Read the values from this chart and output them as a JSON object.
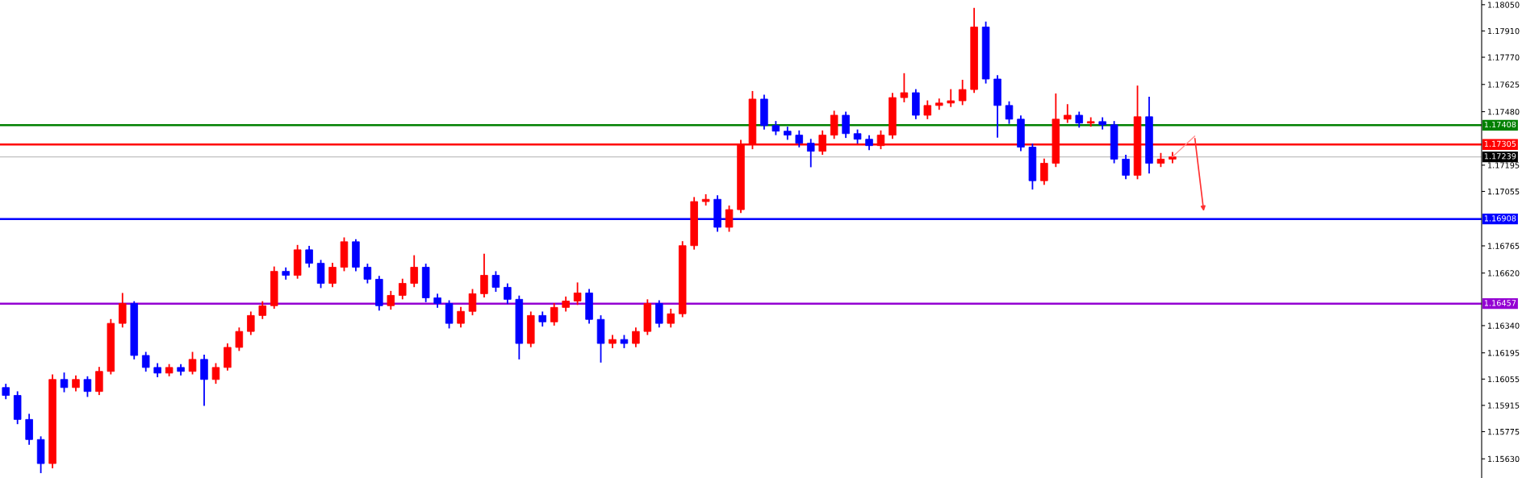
{
  "chart_data": {
    "type": "candlestick",
    "categories": [
      null,
      null,
      null,
      null,
      null,
      null,
      null,
      null,
      null,
      null,
      null,
      null,
      null,
      null,
      null,
      null,
      null,
      null,
      null,
      null,
      null,
      null,
      null,
      null,
      null,
      null,
      null,
      null,
      null,
      null,
      null,
      null,
      null,
      null,
      null,
      null,
      null,
      null,
      null,
      null,
      null,
      null,
      null,
      null,
      null,
      null,
      null,
      null,
      null,
      null,
      null,
      null,
      null,
      null,
      null,
      null,
      null,
      null,
      null,
      null,
      null,
      null,
      null,
      null,
      null,
      null,
      null,
      null,
      null,
      null,
      null,
      null,
      null,
      null,
      null,
      null,
      null,
      null,
      null,
      null,
      null,
      null,
      null,
      null,
      null,
      null,
      null,
      null,
      null,
      null,
      null,
      null,
      null,
      null,
      null,
      null,
      null,
      null,
      null,
      null,
      null,
      null,
      null,
      null,
      null,
      null,
      null,
      null,
      null,
      null,
      null,
      null,
      null,
      null,
      null,
      null,
      null,
      null,
      null,
      null,
      null,
      null,
      null,
      null,
      null,
      null,
      null
    ],
    "ohlc": [
      [
        1.1601,
        1.1603,
        1.15948,
        1.15968
      ],
      [
        1.15968,
        1.1599,
        1.15815,
        1.1584
      ],
      [
        1.1584,
        1.1587,
        1.15705,
        1.15733
      ],
      [
        1.15733,
        1.1575,
        1.15554,
        1.15605
      ],
      [
        1.15605,
        1.1608,
        1.1558,
        1.16053
      ],
      [
        1.16053,
        1.1609,
        1.15985,
        1.1601
      ],
      [
        1.1601,
        1.16075,
        1.1599,
        1.16053
      ],
      [
        1.16053,
        1.1607,
        1.1596,
        1.15989
      ],
      [
        1.15989,
        1.1612,
        1.1597,
        1.16096
      ],
      [
        1.16096,
        1.16375,
        1.1608,
        1.16352
      ],
      [
        1.16352,
        1.16514,
        1.1633,
        1.16458
      ],
      [
        1.16458,
        1.1647,
        1.1616,
        1.16181
      ],
      [
        1.16181,
        1.162,
        1.16095,
        1.16117
      ],
      [
        1.16117,
        1.1614,
        1.16065,
        1.16087
      ],
      [
        1.16087,
        1.16135,
        1.1607,
        1.16117
      ],
      [
        1.16117,
        1.16135,
        1.16075,
        1.16096
      ],
      [
        1.16096,
        1.162,
        1.1608,
        1.1616
      ],
      [
        1.1616,
        1.16185,
        1.15912,
        1.16053
      ],
      [
        1.16053,
        1.1614,
        1.1603,
        1.16117
      ],
      [
        1.16117,
        1.16245,
        1.161,
        1.16224
      ],
      [
        1.16224,
        1.1633,
        1.16205,
        1.16309
      ],
      [
        1.16309,
        1.16415,
        1.1629,
        1.16394
      ],
      [
        1.16394,
        1.1647,
        1.16375,
        1.16446
      ],
      [
        1.16446,
        1.16655,
        1.1643,
        1.16629
      ],
      [
        1.16629,
        1.1665,
        1.16585,
        1.16608
      ],
      [
        1.16608,
        1.1677,
        1.1659,
        1.16744
      ],
      [
        1.16744,
        1.16765,
        1.1665,
        1.16672
      ],
      [
        1.16672,
        1.1669,
        1.1654,
        1.16565
      ],
      [
        1.16565,
        1.16675,
        1.16545,
        1.16651
      ],
      [
        1.16651,
        1.1681,
        1.1663,
        1.16787
      ],
      [
        1.16787,
        1.168,
        1.1663,
        1.16651
      ],
      [
        1.16651,
        1.1667,
        1.16565,
        1.16587
      ],
      [
        1.16587,
        1.16605,
        1.1642,
        1.16446
      ],
      [
        1.16446,
        1.16525,
        1.16425,
        1.16501
      ],
      [
        1.16501,
        1.1659,
        1.1648,
        1.16565
      ],
      [
        1.16565,
        1.16715,
        1.16545,
        1.16651
      ],
      [
        1.16651,
        1.1667,
        1.16465,
        1.16488
      ],
      [
        1.16488,
        1.1651,
        1.16435,
        1.16458
      ],
      [
        1.16458,
        1.16475,
        1.16325,
        1.16352
      ],
      [
        1.16352,
        1.1644,
        1.1633,
        1.16416
      ],
      [
        1.16416,
        1.16535,
        1.16395,
        1.1651
      ],
      [
        1.1651,
        1.16723,
        1.1649,
        1.16608
      ],
      [
        1.16608,
        1.1663,
        1.1652,
        1.16544
      ],
      [
        1.16544,
        1.16565,
        1.16455,
        1.1648
      ],
      [
        1.1648,
        1.165,
        1.1616,
        1.16245
      ],
      [
        1.16245,
        1.16415,
        1.16225,
        1.16394
      ],
      [
        1.16394,
        1.16415,
        1.16335,
        1.1636
      ],
      [
        1.1636,
        1.1646,
        1.1634,
        1.16437
      ],
      [
        1.16437,
        1.16495,
        1.16415,
        1.16471
      ],
      [
        1.16471,
        1.1657,
        1.1645,
        1.16514
      ],
      [
        1.16514,
        1.16535,
        1.1635,
        1.16373
      ],
      [
        1.16373,
        1.16395,
        1.16143,
        1.16245
      ],
      [
        1.16245,
        1.1629,
        1.1622,
        1.16266
      ],
      [
        1.16266,
        1.1629,
        1.1622,
        1.16245
      ],
      [
        1.16245,
        1.1633,
        1.16225,
        1.16309
      ],
      [
        1.16309,
        1.1648,
        1.1629,
        1.16458
      ],
      [
        1.16458,
        1.16475,
        1.1633,
        1.16352
      ],
      [
        1.16352,
        1.1643,
        1.1633,
        1.16403
      ],
      [
        1.16403,
        1.1679,
        1.16385,
        1.16766
      ],
      [
        1.16766,
        1.17025,
        1.16745,
        1.17001
      ],
      [
        1.17001,
        1.1704,
        1.1698,
        1.17013
      ],
      [
        1.17013,
        1.17035,
        1.1684,
        1.16864
      ],
      [
        1.16864,
        1.1698,
        1.1684,
        1.16958
      ],
      [
        1.16958,
        1.1733,
        1.1694,
        1.17304
      ],
      [
        1.17304,
        1.1759,
        1.1728,
        1.17547
      ],
      [
        1.17547,
        1.1757,
        1.17385,
        1.17406
      ],
      [
        1.17406,
        1.1743,
        1.17355,
        1.17376
      ],
      [
        1.17376,
        1.174,
        1.1733,
        1.17355
      ],
      [
        1.17355,
        1.1738,
        1.1729,
        1.17312
      ],
      [
        1.17312,
        1.17335,
        1.17184,
        1.17269
      ],
      [
        1.17269,
        1.1738,
        1.1725,
        1.17355
      ],
      [
        1.17355,
        1.17485,
        1.17335,
        1.17461
      ],
      [
        1.17461,
        1.1748,
        1.1734,
        1.17363
      ],
      [
        1.17363,
        1.17385,
        1.1731,
        1.17333
      ],
      [
        1.17333,
        1.17355,
        1.17275,
        1.17299
      ],
      [
        1.17299,
        1.1738,
        1.1728,
        1.17355
      ],
      [
        1.17355,
        1.1758,
        1.17335,
        1.17555
      ],
      [
        1.17555,
        1.17685,
        1.1753,
        1.17581
      ],
      [
        1.17581,
        1.176,
        1.1744,
        1.17461
      ],
      [
        1.17461,
        1.1754,
        1.1744,
        1.17513
      ],
      [
        1.17513,
        1.1755,
        1.1749,
        1.17526
      ],
      [
        1.17526,
        1.176,
        1.17505,
        1.17538
      ],
      [
        1.17538,
        1.1765,
        1.17515,
        1.17598
      ],
      [
        1.17598,
        1.18033,
        1.1758,
        1.17931
      ],
      [
        1.17931,
        1.1796,
        1.1763,
        1.17654
      ],
      [
        1.17654,
        1.17675,
        1.17342,
        1.17513
      ],
      [
        1.17513,
        1.17535,
        1.17415,
        1.1744
      ],
      [
        1.1744,
        1.1746,
        1.1727,
        1.17291
      ],
      [
        1.17291,
        1.1731,
        1.17065,
        1.17112
      ],
      [
        1.17112,
        1.1723,
        1.1709,
        1.17205
      ],
      [
        1.17205,
        1.17577,
        1.17185,
        1.1744
      ],
      [
        1.1744,
        1.1752,
        1.1742,
        1.17461
      ],
      [
        1.17461,
        1.1748,
        1.17395,
        1.17419
      ],
      [
        1.17419,
        1.1745,
        1.174,
        1.17427
      ],
      [
        1.17427,
        1.1745,
        1.17385,
        1.1741
      ],
      [
        1.1741,
        1.1743,
        1.17205,
        1.17227
      ],
      [
        1.17227,
        1.1725,
        1.1712,
        1.17141
      ],
      [
        1.17141,
        1.17619,
        1.1712,
        1.17453
      ],
      [
        1.17453,
        1.1756,
        1.1715,
        1.17205
      ],
      [
        1.17205,
        1.1726,
        1.17185,
        1.17227
      ],
      [
        1.17227,
        1.17265,
        1.17205,
        1.17239
      ],
      null,
      null,
      null,
      null,
      null,
      null,
      null,
      null,
      null,
      null,
      null,
      null,
      null,
      null,
      null,
      null,
      null,
      null,
      null,
      null,
      null,
      null,
      null,
      null,
      null,
      null
    ],
    "colors": [
      "#0000ff",
      "#0000ff",
      "#0000ff",
      "#0000ff",
      "#ff0000",
      "#0000ff",
      "#ff0000",
      "#0000ff",
      "#ff0000",
      "#ff0000",
      "#ff0000",
      "#0000ff",
      "#0000ff",
      "#0000ff",
      "#ff0000",
      "#0000ff",
      "#ff0000",
      "#0000ff",
      "#ff0000",
      "#ff0000",
      "#ff0000",
      "#ff0000",
      "#ff0000",
      "#ff0000",
      "#0000ff",
      "#ff0000",
      "#0000ff",
      "#0000ff",
      "#ff0000",
      "#ff0000",
      "#0000ff",
      "#0000ff",
      "#0000ff",
      "#ff0000",
      "#ff0000",
      "#ff0000",
      "#0000ff",
      "#0000ff",
      "#0000ff",
      "#ff0000",
      "#ff0000",
      "#ff0000",
      "#0000ff",
      "#0000ff",
      "#0000ff",
      "#ff0000",
      "#0000ff",
      "#ff0000",
      "#ff0000",
      "#ff0000",
      "#0000ff",
      "#0000ff",
      "#ff0000",
      "#0000ff",
      "#ff0000",
      "#ff0000",
      "#0000ff",
      "#ff0000",
      "#ff0000",
      "#ff0000",
      "#ff0000",
      "#0000ff",
      "#ff0000",
      "#ff0000",
      "#ff0000",
      "#0000ff",
      "#0000ff",
      "#0000ff",
      "#0000ff",
      "#0000ff",
      "#ff0000",
      "#ff0000",
      "#0000ff",
      "#0000ff",
      "#0000ff",
      "#ff0000",
      "#ff0000",
      "#ff0000",
      "#0000ff",
      "#ff0000",
      "#ff0000",
      "#ff0000",
      "#ff0000",
      "#ff0000",
      "#0000ff",
      "#0000ff",
      "#0000ff",
      "#0000ff",
      "#0000ff",
      "#ff0000",
      "#ff0000",
      "#ff0000",
      "#0000ff",
      "#ff0000",
      "#0000ff",
      "#0000ff",
      "#0000ff",
      "#ff0000",
      "#0000ff",
      "#ff0000",
      "#ff0000",
      null,
      null,
      null,
      null,
      null,
      null,
      null,
      null,
      null,
      null,
      null,
      null,
      null,
      null,
      null,
      null,
      null,
      null,
      null,
      null,
      null,
      null,
      null,
      null,
      null,
      null
    ],
    "ylim": [
      1.15528,
      1.18075
    ],
    "yticks": [
      {
        "value": 1.1805,
        "label": "1.18050"
      },
      {
        "value": 1.1791,
        "label": "1.17910"
      },
      {
        "value": 1.1777,
        "label": "1.17770"
      },
      1.17625,
      {
        "value": 1.1748,
        "label": "1.17480"
      },
      1.17195,
      1.17055,
      1.16765,
      {
        "value": 1.1662,
        "label": "1.16620"
      },
      {
        "value": 1.1634,
        "label": "1.16340"
      },
      1.16195,
      1.16055,
      1.15915,
      1.15775,
      {
        "value": 1.1563,
        "label": "1.15630"
      }
    ],
    "ref_lines": [
      {
        "axis": "y",
        "value": 1.17408,
        "label": "1.17408",
        "color": "#008000"
      },
      {
        "axis": "y",
        "value": 1.17305,
        "label": "1.17305",
        "color": "#ff0000"
      },
      {
        "axis": "y",
        "value": 1.17239,
        "label": "1.17239",
        "color": "#c0c0c0"
      },
      {
        "axis": "y",
        "value": 1.16908,
        "label": "1.16908",
        "color": "#0000ff"
      },
      {
        "axis": "y",
        "value": 1.16457,
        "label": "1.16457",
        "color": "#9400d3"
      }
    ],
    "tick_labels": "y",
    "grid": false
  }
}
